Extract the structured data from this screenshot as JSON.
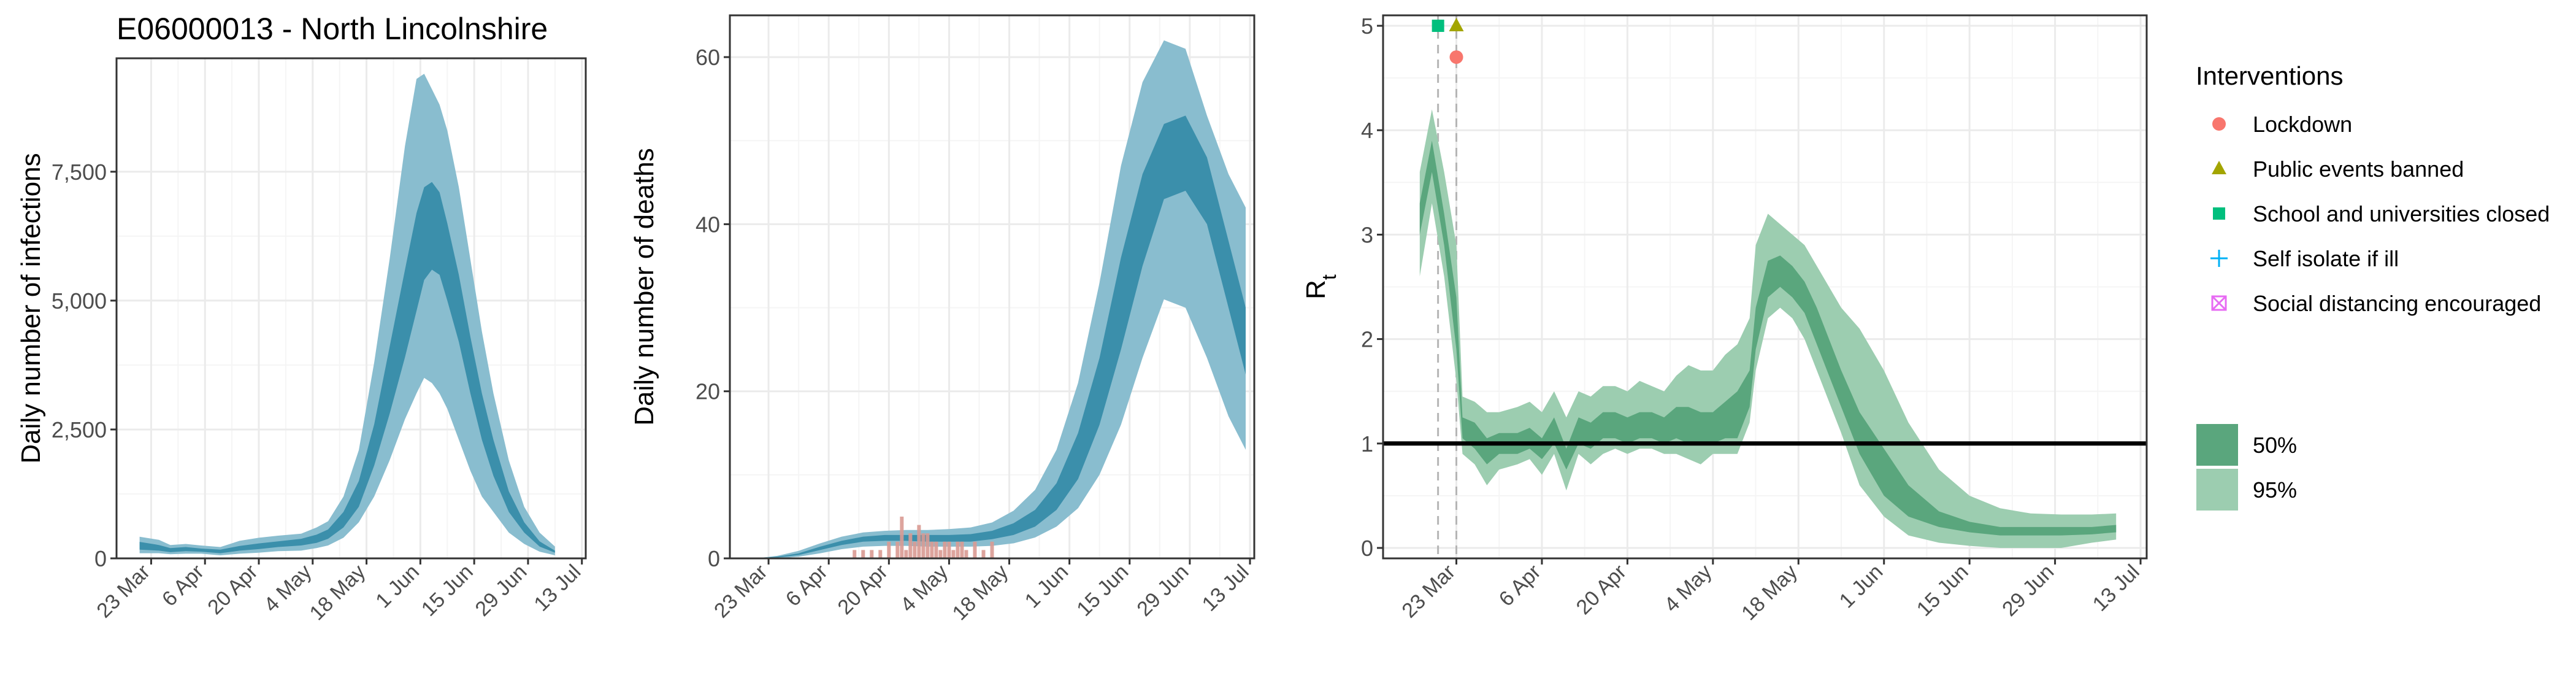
{
  "page_title": "E06000013 - North Lincolnshire",
  "colors": {
    "band95_blue": "#89bdcf",
    "band50_blue": "#3b8fab",
    "band95_green": "#9ccdb0",
    "band50_green": "#5aa67d",
    "observed_deaths": "#d99a92",
    "grid_major": "#ebebeb",
    "grid_minor": "#f5f5f5",
    "lockdown": "#f8766d",
    "public_events": "#a3a500",
    "school": "#00bf7d",
    "self_isolate": "#00b0f6",
    "social_distancing": "#e76bf3"
  },
  "chart_data": [
    {
      "id": "infections",
      "type": "area",
      "title": "",
      "xlabel": "",
      "ylabel": "Daily number of infections",
      "x_ticks": [
        "23 Mar",
        "6 Apr",
        "20 Apr",
        "4 May",
        "18 May",
        "1 Jun",
        "15 Jun",
        "29 Jun",
        "13 Jul"
      ],
      "x_range": [
        "2020-03-14",
        "2020-07-14"
      ],
      "ylim": [
        0,
        9700
      ],
      "y_ticks": [
        0,
        2500,
        5000,
        7500
      ],
      "y_tick_labels": [
        "0",
        "2,500",
        "5,000",
        "7,500"
      ],
      "grid": true,
      "series": [
        {
          "x": [
            "2020-03-20",
            "2020-03-25",
            "2020-03-28",
            "2020-04-01",
            "2020-04-05",
            "2020-04-10",
            "2020-04-15",
            "2020-04-20",
            "2020-04-25",
            "2020-05-01",
            "2020-05-05",
            "2020-05-08",
            "2020-05-12",
            "2020-05-16",
            "2020-05-20",
            "2020-05-24",
            "2020-05-28",
            "2020-05-31",
            "2020-06-02",
            "2020-06-04",
            "2020-06-06",
            "2020-06-08",
            "2020-06-11",
            "2020-06-14",
            "2020-06-17",
            "2020-06-20",
            "2020-06-24",
            "2020-06-28",
            "2020-07-02",
            "2020-07-06"
          ],
          "lo95": [
            100,
            100,
            80,
            90,
            90,
            60,
            90,
            110,
            140,
            150,
            200,
            250,
            400,
            700,
            1200,
            1900,
            2700,
            3200,
            3500,
            3400,
            3200,
            2900,
            2300,
            1700,
            1200,
            900,
            500,
            280,
            130,
            60
          ],
          "lo50": [
            170,
            150,
            120,
            140,
            130,
            100,
            150,
            180,
            220,
            250,
            300,
            380,
            600,
            1000,
            1800,
            2800,
            3900,
            4800,
            5400,
            5600,
            5500,
            5000,
            4200,
            3200,
            2300,
            1600,
            900,
            500,
            230,
            110
          ],
          "hi50": [
            320,
            260,
            200,
            220,
            190,
            170,
            240,
            290,
            330,
            380,
            460,
            560,
            900,
            1500,
            2600,
            4100,
            5600,
            6700,
            7200,
            7300,
            7100,
            6500,
            5500,
            4300,
            3200,
            2300,
            1300,
            700,
            330,
            150
          ],
          "hi95": [
            420,
            360,
            260,
            280,
            250,
            220,
            340,
            400,
            440,
            480,
            600,
            720,
            1200,
            2100,
            3800,
            5800,
            8000,
            9300,
            9400,
            9100,
            8800,
            8300,
            7200,
            5800,
            4400,
            3200,
            1900,
            1000,
            500,
            230
          ]
        }
      ]
    },
    {
      "id": "deaths",
      "type": "area",
      "title": "",
      "xlabel": "",
      "ylabel": "Daily number of deaths",
      "x_ticks": [
        "23 Mar",
        "6 Apr",
        "20 Apr",
        "4 May",
        "18 May",
        "1 Jun",
        "15 Jun",
        "29 Jun",
        "13 Jul"
      ],
      "x_range": [
        "2020-03-14",
        "2020-07-14"
      ],
      "ylim": [
        0,
        65
      ],
      "y_ticks": [
        0,
        20,
        40,
        60
      ],
      "y_tick_labels": [
        "0",
        "20",
        "40",
        "60"
      ],
      "grid": true,
      "series": [
        {
          "x": [
            "2020-03-20",
            "2020-03-25",
            "2020-03-30",
            "2020-04-04",
            "2020-04-09",
            "2020-04-14",
            "2020-04-19",
            "2020-04-24",
            "2020-04-29",
            "2020-05-04",
            "2020-05-09",
            "2020-05-14",
            "2020-05-19",
            "2020-05-24",
            "2020-05-29",
            "2020-06-03",
            "2020-06-08",
            "2020-06-13",
            "2020-06-18",
            "2020-06-23",
            "2020-06-28",
            "2020-07-03",
            "2020-07-08",
            "2020-07-12"
          ],
          "lo95": [
            0,
            0,
            0.2,
            0.6,
            1.1,
            1.4,
            1.5,
            1.5,
            1.4,
            1.4,
            1.4,
            1.5,
            1.8,
            2.5,
            3.8,
            6,
            10,
            16,
            24,
            31,
            30,
            24,
            17,
            13
          ],
          "lo50": [
            0,
            0.1,
            0.4,
            1,
            1.6,
            2,
            2.1,
            2.1,
            2,
            2,
            2,
            2.3,
            2.8,
            3.8,
            5.8,
            9.5,
            16,
            25,
            35,
            43,
            44,
            40,
            30,
            22
          ],
          "hi50": [
            0,
            0.2,
            0.6,
            1.4,
            2.1,
            2.6,
            2.8,
            2.8,
            2.8,
            2.8,
            2.9,
            3.3,
            4.2,
            5.8,
            9,
            15,
            24,
            36,
            46,
            52,
            53,
            48,
            38,
            30
          ],
          "hi95": [
            0,
            0.3,
            0.9,
            1.8,
            2.6,
            3.1,
            3.3,
            3.4,
            3.4,
            3.5,
            3.7,
            4.3,
            5.7,
            8.2,
            13,
            21,
            33,
            47,
            57,
            62,
            61,
            53,
            46,
            42
          ]
        }
      ],
      "observed_bars": {
        "x": [
          "2020-04-12",
          "2020-04-14",
          "2020-04-16",
          "2020-04-18",
          "2020-04-20",
          "2020-04-22",
          "2020-04-23",
          "2020-04-24",
          "2020-04-25",
          "2020-04-26",
          "2020-04-27",
          "2020-04-28",
          "2020-04-29",
          "2020-04-30",
          "2020-05-01",
          "2020-05-02",
          "2020-05-03",
          "2020-05-04",
          "2020-05-05",
          "2020-05-06",
          "2020-05-07",
          "2020-05-08",
          "2020-05-10",
          "2020-05-12",
          "2020-05-14"
        ],
        "values": [
          1,
          1,
          1,
          1,
          2,
          2,
          5,
          1,
          3,
          2,
          4,
          3,
          3,
          2,
          2,
          1,
          2,
          2,
          1,
          2,
          2,
          1,
          2,
          1,
          2
        ]
      }
    },
    {
      "id": "rt",
      "type": "area",
      "title": "",
      "xlabel": "",
      "ylabel": "R",
      "ylabel_subscript": "t",
      "x_ticks": [
        "23 Mar",
        "6 Apr",
        "20 Apr",
        "4 May",
        "18 May",
        "1 Jun",
        "15 Jun",
        "29 Jun",
        "13 Jul"
      ],
      "x_range": [
        "2020-03-11",
        "2020-07-14"
      ],
      "ylim": [
        -0.1,
        5.1
      ],
      "y_ticks": [
        0,
        1,
        2,
        3,
        4,
        5
      ],
      "y_tick_labels": [
        "0",
        "1",
        "2",
        "3",
        "4",
        "5"
      ],
      "grid": true,
      "reference_line": 1,
      "intervention_lines": [
        "2020-03-20",
        "2020-03-23"
      ],
      "intervention_markers": [
        {
          "type": "school",
          "date": "2020-03-20",
          "value": 5.0
        },
        {
          "type": "public_events",
          "date": "2020-03-23",
          "value": 5.0
        },
        {
          "type": "lockdown",
          "date": "2020-03-23",
          "value": 4.7
        }
      ],
      "series": [
        {
          "x": [
            "2020-03-17",
            "2020-03-19",
            "2020-03-21",
            "2020-03-23",
            "2020-03-24",
            "2020-03-26",
            "2020-03-28",
            "2020-03-30",
            "2020-04-02",
            "2020-04-04",
            "2020-04-06",
            "2020-04-08",
            "2020-04-10",
            "2020-04-12",
            "2020-04-14",
            "2020-04-16",
            "2020-04-18",
            "2020-04-20",
            "2020-04-22",
            "2020-04-24",
            "2020-04-26",
            "2020-04-28",
            "2020-04-30",
            "2020-05-02",
            "2020-05-04",
            "2020-05-06",
            "2020-05-08",
            "2020-05-10",
            "2020-05-11",
            "2020-05-13",
            "2020-05-15",
            "2020-05-17",
            "2020-05-19",
            "2020-05-21",
            "2020-05-23",
            "2020-05-25",
            "2020-05-28",
            "2020-06-01",
            "2020-06-05",
            "2020-06-10",
            "2020-06-15",
            "2020-06-20",
            "2020-06-25",
            "2020-06-30",
            "2020-07-05",
            "2020-07-09"
          ],
          "lo95": [
            2.6,
            3.3,
            2.6,
            1.6,
            0.9,
            0.8,
            0.6,
            0.75,
            0.8,
            0.85,
            0.7,
            0.9,
            0.55,
            0.9,
            0.8,
            0.9,
            0.95,
            0.9,
            0.95,
            0.95,
            0.9,
            0.9,
            0.85,
            0.8,
            0.9,
            0.9,
            0.9,
            1.2,
            1.7,
            2.2,
            2.3,
            2.2,
            2.0,
            1.7,
            1.4,
            1.1,
            0.6,
            0.3,
            0.12,
            0.05,
            0.02,
            0.0,
            0.0,
            0.0,
            0.05,
            0.08
          ],
          "lo50": [
            3.0,
            3.6,
            2.9,
            1.9,
            1.05,
            0.95,
            0.8,
            0.9,
            0.9,
            0.95,
            0.85,
            1.0,
            0.75,
            1.0,
            0.95,
            1.05,
            1.05,
            1.0,
            1.05,
            1.05,
            1.0,
            1.05,
            1.0,
            1.0,
            1.0,
            1.05,
            1.05,
            1.35,
            1.9,
            2.4,
            2.5,
            2.4,
            2.25,
            1.95,
            1.65,
            1.35,
            0.9,
            0.5,
            0.3,
            0.2,
            0.15,
            0.12,
            0.12,
            0.12,
            0.13,
            0.15
          ],
          "hi50": [
            3.3,
            3.9,
            3.2,
            2.4,
            1.25,
            1.2,
            1.05,
            1.1,
            1.1,
            1.15,
            1.05,
            1.25,
            0.95,
            1.25,
            1.2,
            1.3,
            1.3,
            1.25,
            1.3,
            1.3,
            1.25,
            1.35,
            1.35,
            1.3,
            1.3,
            1.4,
            1.5,
            1.7,
            2.3,
            2.75,
            2.8,
            2.7,
            2.55,
            2.3,
            2.0,
            1.7,
            1.3,
            0.95,
            0.6,
            0.35,
            0.25,
            0.2,
            0.2,
            0.2,
            0.2,
            0.22
          ],
          "hi95": [
            3.6,
            4.2,
            3.6,
            2.9,
            1.45,
            1.4,
            1.3,
            1.3,
            1.35,
            1.4,
            1.3,
            1.5,
            1.25,
            1.5,
            1.45,
            1.55,
            1.55,
            1.5,
            1.6,
            1.55,
            1.5,
            1.65,
            1.75,
            1.7,
            1.7,
            1.85,
            1.95,
            2.2,
            2.9,
            3.2,
            3.1,
            3.0,
            2.9,
            2.7,
            2.5,
            2.3,
            2.1,
            1.7,
            1.2,
            0.75,
            0.5,
            0.38,
            0.33,
            0.32,
            0.32,
            0.33
          ]
        }
      ]
    }
  ],
  "legend": {
    "interventions_title": "Interventions",
    "interventions": [
      {
        "key": "lockdown",
        "label": "Lockdown"
      },
      {
        "key": "public_events",
        "label": "Public events banned"
      },
      {
        "key": "school",
        "label": "School and universities closed"
      },
      {
        "key": "self_isolate",
        "label": "Self isolate if ill"
      },
      {
        "key": "social_distancing",
        "label": "Social distancing encouraged"
      }
    ],
    "ci": [
      {
        "key": "band50",
        "label": "50%"
      },
      {
        "key": "band95",
        "label": "95%"
      }
    ]
  }
}
